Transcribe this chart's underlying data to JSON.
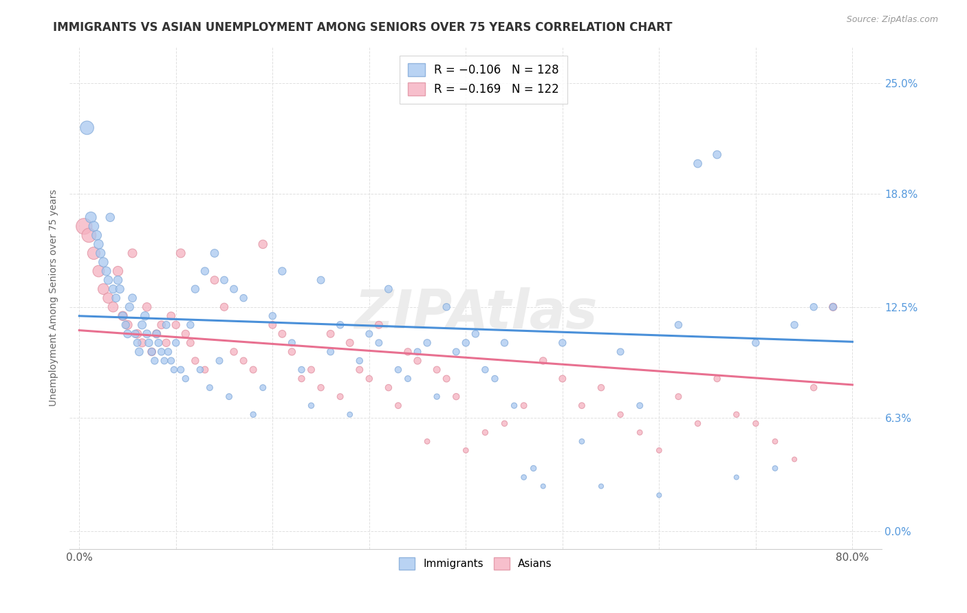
{
  "title": "IMMIGRANTS VS ASIAN UNEMPLOYMENT AMONG SENIORS OVER 75 YEARS CORRELATION CHART",
  "source": "Source: ZipAtlas.com",
  "ylabel": "Unemployment Among Seniors over 75 years",
  "ytick_values": [
    0.0,
    6.3,
    12.5,
    18.8,
    25.0
  ],
  "xtick_values": [
    0,
    80
  ],
  "xlim": [
    -1,
    83
  ],
  "ylim": [
    -1.0,
    27.0
  ],
  "color_immigrants": "#a8c8f0",
  "color_asians": "#f5b0c0",
  "trend_imm_slope": -0.018,
  "trend_imm_intercept": 12.0,
  "trend_asi_slope": -0.038,
  "trend_asi_intercept": 11.2,
  "trend_imm_color": "#4a90d9",
  "trend_asi_color": "#e87090",
  "background_color": "#ffffff",
  "grid_color": "#e0e0e0",
  "watermark_text": "ZIPAtlas",
  "immigrants_x": [
    0.8,
    1.2,
    1.5,
    1.8,
    2.0,
    2.2,
    2.5,
    2.8,
    3.0,
    3.2,
    3.5,
    3.8,
    4.0,
    4.2,
    4.5,
    4.8,
    5.0,
    5.2,
    5.5,
    5.8,
    6.0,
    6.2,
    6.5,
    6.8,
    7.0,
    7.2,
    7.5,
    7.8,
    8.0,
    8.2,
    8.5,
    8.8,
    9.0,
    9.2,
    9.5,
    9.8,
    10.0,
    10.5,
    11.0,
    11.5,
    12.0,
    12.5,
    13.0,
    13.5,
    14.0,
    14.5,
    15.0,
    15.5,
    16.0,
    17.0,
    18.0,
    19.0,
    20.0,
    21.0,
    22.0,
    23.0,
    24.0,
    25.0,
    26.0,
    27.0,
    28.0,
    29.0,
    30.0,
    31.0,
    32.0,
    33.0,
    34.0,
    35.0,
    36.0,
    37.0,
    38.0,
    39.0,
    40.0,
    41.0,
    42.0,
    43.0,
    44.0,
    45.0,
    46.0,
    47.0,
    48.0,
    50.0,
    52.0,
    54.0,
    56.0,
    58.0,
    60.0,
    62.0,
    64.0,
    66.0,
    68.0,
    70.0,
    72.0,
    74.0,
    76.0,
    78.0
  ],
  "immigrants_y": [
    22.5,
    17.5,
    17.0,
    16.5,
    16.0,
    15.5,
    15.0,
    14.5,
    14.0,
    17.5,
    13.5,
    13.0,
    14.0,
    13.5,
    12.0,
    11.5,
    11.0,
    12.5,
    13.0,
    11.0,
    10.5,
    10.0,
    11.5,
    12.0,
    11.0,
    10.5,
    10.0,
    9.5,
    11.0,
    10.5,
    10.0,
    9.5,
    11.5,
    10.0,
    9.5,
    9.0,
    10.5,
    9.0,
    8.5,
    11.5,
    13.5,
    9.0,
    14.5,
    8.0,
    15.5,
    9.5,
    14.0,
    7.5,
    13.5,
    13.0,
    6.5,
    8.0,
    12.0,
    14.5,
    10.5,
    9.0,
    7.0,
    14.0,
    10.0,
    11.5,
    6.5,
    9.5,
    11.0,
    10.5,
    13.5,
    9.0,
    8.5,
    10.0,
    10.5,
    7.5,
    12.5,
    10.0,
    10.5,
    11.0,
    9.0,
    8.5,
    10.5,
    7.0,
    3.0,
    3.5,
    2.5,
    10.5,
    5.0,
    2.5,
    10.0,
    7.0,
    2.0,
    11.5,
    20.5,
    21.0,
    3.0,
    10.5,
    3.5,
    11.5,
    12.5,
    12.5
  ],
  "immigrants_size": [
    200,
    130,
    110,
    100,
    95,
    90,
    95,
    85,
    80,
    80,
    75,
    70,
    80,
    75,
    70,
    65,
    70,
    75,
    70,
    65,
    60,
    70,
    75,
    80,
    70,
    65,
    60,
    55,
    65,
    60,
    55,
    50,
    60,
    55,
    50,
    45,
    55,
    50,
    45,
    55,
    65,
    45,
    65,
    40,
    70,
    50,
    60,
    40,
    60,
    55,
    35,
    40,
    55,
    65,
    50,
    45,
    35,
    60,
    50,
    55,
    30,
    45,
    50,
    50,
    60,
    45,
    40,
    50,
    55,
    35,
    55,
    50,
    55,
    55,
    45,
    45,
    55,
    35,
    30,
    35,
    25,
    55,
    30,
    25,
    50,
    40,
    25,
    55,
    70,
    70,
    25,
    55,
    30,
    55,
    55,
    55
  ],
  "asians_x": [
    0.5,
    1.0,
    1.5,
    2.0,
    2.5,
    3.0,
    3.5,
    4.0,
    4.5,
    5.0,
    5.5,
    6.0,
    6.5,
    7.0,
    7.5,
    8.0,
    8.5,
    9.0,
    9.5,
    10.0,
    10.5,
    11.0,
    11.5,
    12.0,
    13.0,
    14.0,
    15.0,
    16.0,
    17.0,
    18.0,
    19.0,
    20.0,
    21.0,
    22.0,
    23.0,
    24.0,
    25.0,
    26.0,
    27.0,
    28.0,
    29.0,
    30.0,
    31.0,
    32.0,
    33.0,
    34.0,
    35.0,
    36.0,
    37.0,
    38.0,
    39.0,
    40.0,
    42.0,
    44.0,
    46.0,
    48.0,
    50.0,
    52.0,
    54.0,
    56.0,
    58.0,
    60.0,
    62.0,
    64.0,
    66.0,
    68.0,
    70.0,
    72.0,
    74.0,
    76.0,
    78.0
  ],
  "asians_y": [
    17.0,
    16.5,
    15.5,
    14.5,
    13.5,
    13.0,
    12.5,
    14.5,
    12.0,
    11.5,
    15.5,
    11.0,
    10.5,
    12.5,
    10.0,
    11.0,
    11.5,
    10.5,
    12.0,
    11.5,
    15.5,
    11.0,
    10.5,
    9.5,
    9.0,
    14.0,
    12.5,
    10.0,
    9.5,
    9.0,
    16.0,
    11.5,
    11.0,
    10.0,
    8.5,
    9.0,
    8.0,
    11.0,
    7.5,
    10.5,
    9.0,
    8.5,
    11.5,
    8.0,
    7.0,
    10.0,
    9.5,
    5.0,
    9.0,
    8.5,
    7.5,
    4.5,
    5.5,
    6.0,
    7.0,
    9.5,
    8.5,
    7.0,
    8.0,
    6.5,
    5.5,
    4.5,
    7.5,
    6.0,
    8.5,
    6.5,
    6.0,
    5.0,
    4.0,
    8.0,
    12.5
  ],
  "asians_size": [
    280,
    220,
    170,
    145,
    130,
    120,
    110,
    105,
    95,
    90,
    85,
    80,
    75,
    80,
    70,
    75,
    70,
    65,
    70,
    65,
    85,
    65,
    60,
    55,
    50,
    70,
    65,
    55,
    50,
    50,
    80,
    60,
    60,
    55,
    45,
    50,
    45,
    60,
    40,
    60,
    50,
    45,
    60,
    45,
    40,
    55,
    55,
    30,
    50,
    50,
    45,
    30,
    35,
    35,
    40,
    55,
    50,
    40,
    45,
    35,
    30,
    30,
    40,
    35,
    45,
    35,
    35,
    30,
    25,
    45,
    65
  ]
}
